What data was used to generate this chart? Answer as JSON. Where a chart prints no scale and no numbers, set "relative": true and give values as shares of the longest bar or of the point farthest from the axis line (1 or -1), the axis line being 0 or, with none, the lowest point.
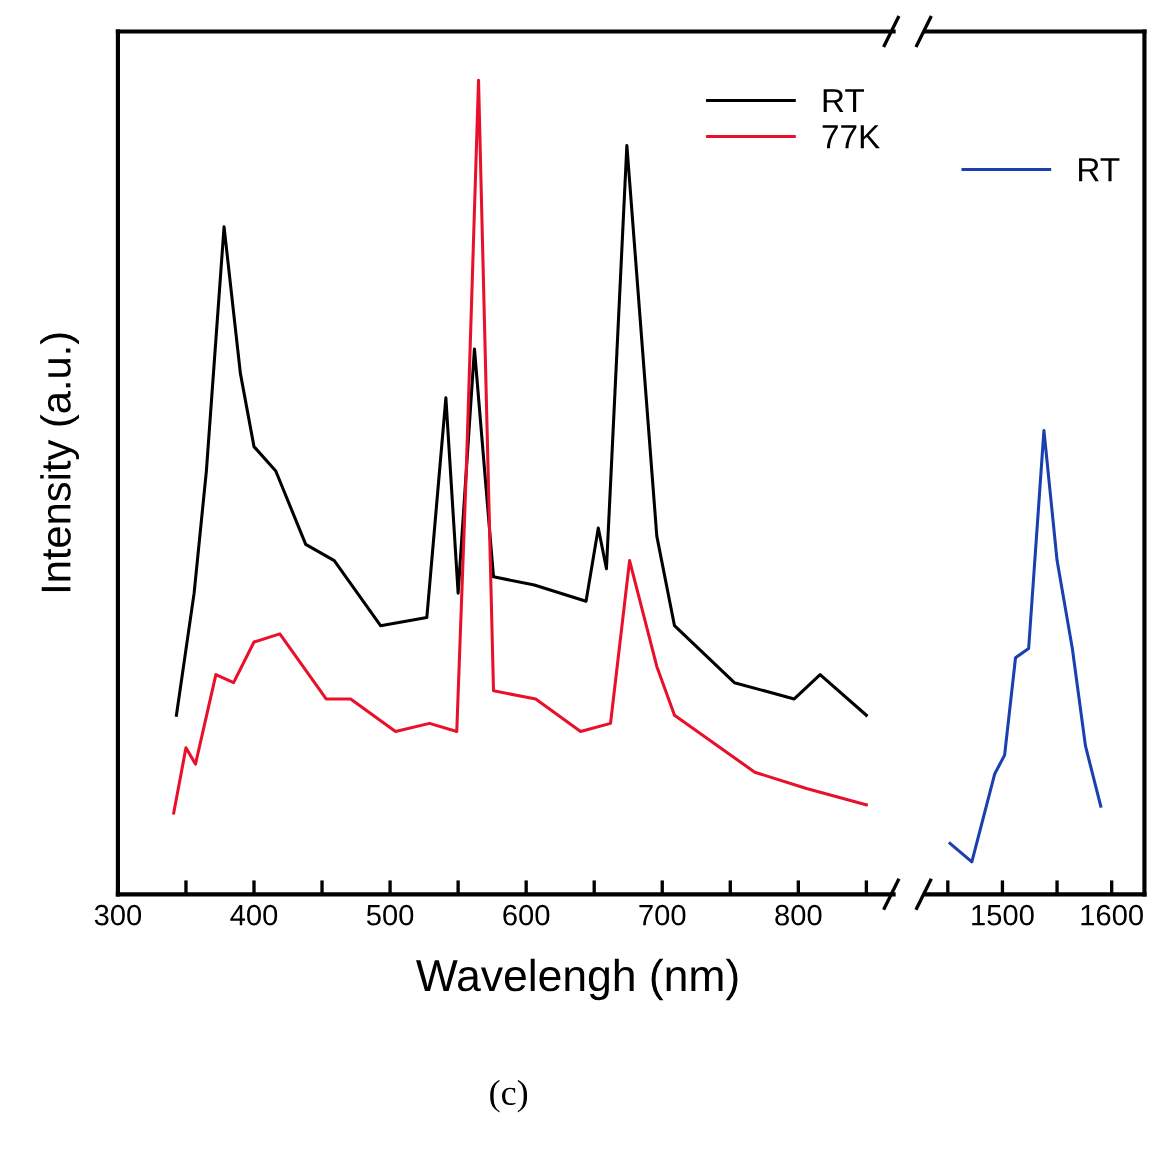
{
  "chart_data": [
    {
      "type": "line",
      "relative": true,
      "xlabel": "Wavelengh (nm)",
      "ylabel": "Intensity (a.u.)",
      "xlim": [
        300,
        870
      ],
      "xticks": [
        300,
        {
          "value": 350,
          "label": null
        },
        400,
        {
          "value": 450,
          "label": null
        },
        500,
        {
          "value": 550,
          "label": null
        },
        600,
        {
          "value": 650,
          "label": null
        },
        700,
        {
          "value": 750,
          "label": null
        },
        800,
        {
          "value": 850,
          "label": null
        }
      ],
      "tick_labels": "x",
      "legend": "top right",
      "annotations": [
        "(c)"
      ],
      "series": [
        {
          "name": "RT",
          "color": "#000000",
          "x": [
            343,
            356,
            365,
            378,
            390,
            400,
            416,
            438,
            459,
            493,
            527,
            541,
            550,
            562,
            576,
            606,
            644,
            653,
            659,
            674,
            696,
            709,
            753,
            797,
            816,
            850
          ],
          "values": [
            0.22,
            0.37,
            0.52,
            0.82,
            0.64,
            0.55,
            0.52,
            0.43,
            0.41,
            0.33,
            0.34,
            0.61,
            0.37,
            0.67,
            0.39,
            0.38,
            0.36,
            0.45,
            0.4,
            0.92,
            0.44,
            0.33,
            0.26,
            0.24,
            0.27,
            0.22
          ]
        },
        {
          "name": "77K",
          "color": "#e8102a",
          "x": [
            341,
            350,
            357,
            372,
            385,
            400,
            419,
            453,
            471,
            504,
            529,
            549,
            556,
            565,
            576,
            607,
            640,
            662,
            676,
            696,
            709,
            768,
            806,
            850
          ],
          "values": [
            0.1,
            0.18,
            0.16,
            0.27,
            0.26,
            0.31,
            0.32,
            0.24,
            0.24,
            0.2,
            0.21,
            0.2,
            0.52,
            1.0,
            0.25,
            0.24,
            0.2,
            0.21,
            0.41,
            0.28,
            0.22,
            0.15,
            0.13,
            0.11
          ]
        }
      ]
    },
    {
      "type": "line",
      "relative": true,
      "xlim": [
        1430,
        1630
      ],
      "xticks": [
        {
          "value": 1450,
          "label": null
        },
        1500,
        {
          "value": 1550,
          "label": null
        },
        1600
      ],
      "tick_labels": "x",
      "legend": "top right",
      "series": [
        {
          "name": "RT",
          "color": "#1a3fae",
          "x": [
            1452,
            1472,
            1493,
            1502,
            1512,
            1524,
            1538,
            1550,
            1564,
            1576,
            1590
          ],
          "values": [
            0.11,
            0.07,
            0.26,
            0.3,
            0.51,
            0.53,
            1.0,
            0.72,
            0.53,
            0.32,
            0.19
          ]
        }
      ]
    }
  ]
}
